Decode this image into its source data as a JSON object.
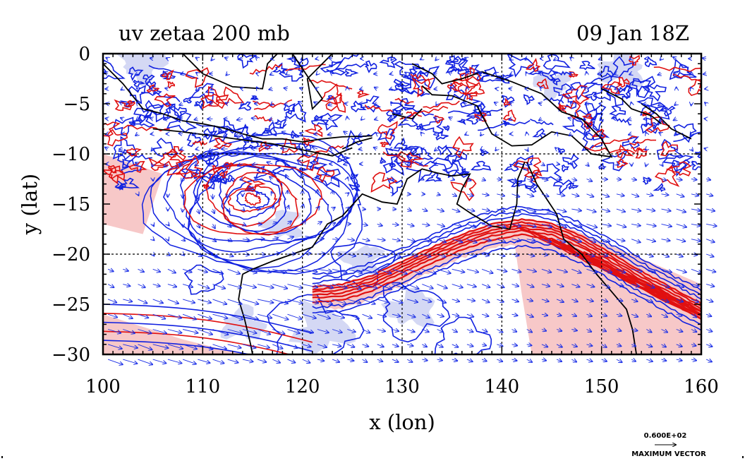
{
  "chart_data": {
    "type": "heatmap",
    "title_left": "uv zetaa 200 mb",
    "title_right": "09 Jan 18Z",
    "xlabel": "x (lon)",
    "ylabel": "y (lat)",
    "xlim": [
      100,
      160
    ],
    "ylim": [
      -30,
      0
    ],
    "x_ticks": [
      100,
      110,
      120,
      130,
      140,
      150,
      160
    ],
    "y_ticks": [
      0,
      -5,
      -10,
      -15,
      -20,
      -25,
      -30
    ],
    "x_tick_labels": [
      "100",
      "110",
      "120",
      "130",
      "140",
      "150",
      "160"
    ],
    "y_tick_labels": [
      "0",
      "−5",
      "−10",
      "−15",
      "−20",
      "−25",
      "−30"
    ],
    "gridlines_x": [
      110,
      120,
      130,
      140,
      150
    ],
    "gridlines_y": [
      -10,
      -20
    ],
    "grid": "dashed",
    "contour_colors": {
      "positive": "#e01010",
      "negative": "#1020e0",
      "positive_fill": "#f7c8c8",
      "negative_fill": "#d4d8f4"
    },
    "vector_color": "#1a2ee6",
    "coast_color": "#000000",
    "vector_key": {
      "value_label": "0.600E+02",
      "caption": "MAXIMUM VECTOR"
    },
    "features": {
      "jet_band": [
        [
          121,
          -23.5
        ],
        [
          124,
          -23.3
        ],
        [
          127,
          -22.4
        ],
        [
          130,
          -21
        ],
        [
          133,
          -19.6
        ],
        [
          136,
          -18.3
        ],
        [
          139,
          -17.3
        ],
        [
          142,
          -16.8
        ],
        [
          145,
          -17.2
        ],
        [
          148,
          -18.5
        ],
        [
          151,
          -20.2
        ],
        [
          154,
          -22
        ],
        [
          157,
          -23.6
        ],
        [
          160,
          -25.2
        ]
      ],
      "cyclone_center": [
        115,
        -14.5
      ]
    }
  }
}
